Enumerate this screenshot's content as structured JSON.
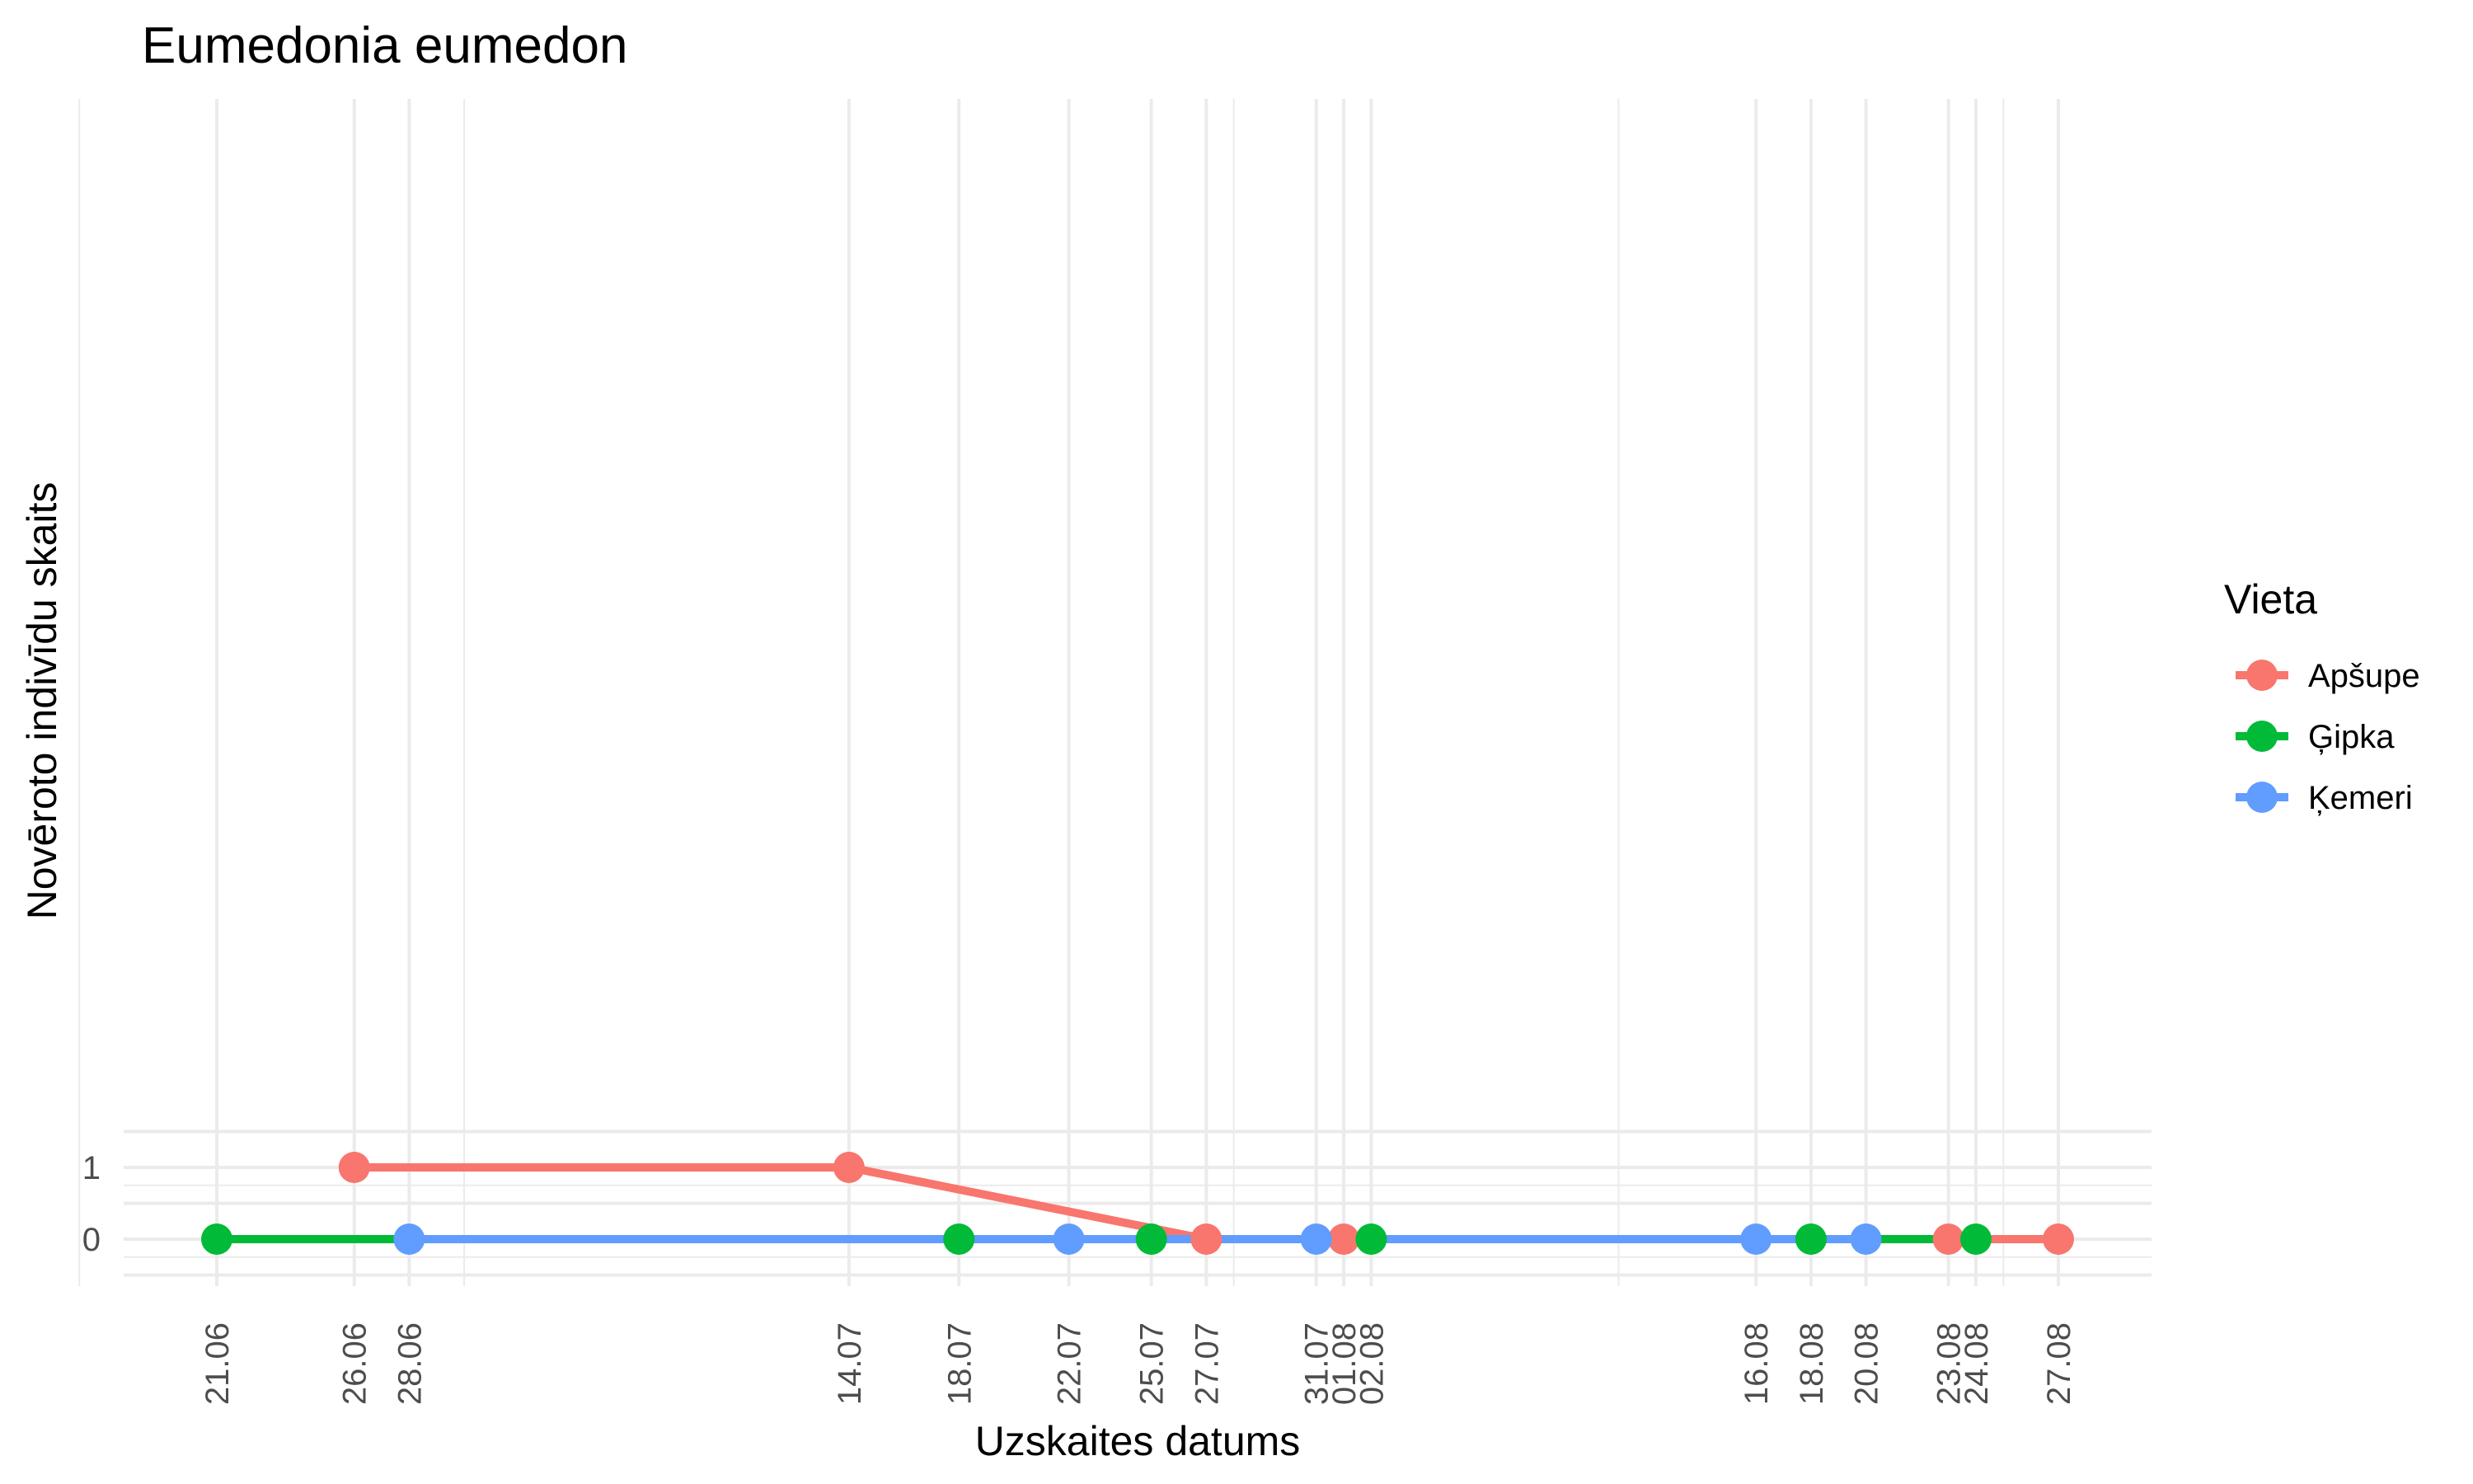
{
  "chart_data": {
    "type": "line",
    "title": "Eumedonia eumedon",
    "xlabel": "Uzskaites datums",
    "ylabel": "Novēroto indivīdu skaits",
    "year": 2023,
    "ylim": [
      -0.5,
      1.5
    ],
    "y_ticks": [
      0,
      1
    ],
    "x_tick_labels": [
      "21.06",
      "26.06",
      "28.06",
      "14.07",
      "18.07",
      "22.07",
      "25.07",
      "27.07",
      "31.07",
      "01.08",
      "02.08",
      "16.08",
      "18.08",
      "20.08",
      "23.08",
      "24.08",
      "27.08"
    ],
    "legend_title": "Vieta",
    "legend_position": "right",
    "grid": true,
    "series": [
      {
        "name": "Apšupe",
        "color": "#F8766D",
        "x": [
          "26.06",
          "14.07",
          "27.07",
          "01.08",
          "23.08",
          "27.08"
        ],
        "values": [
          1,
          1,
          0,
          0,
          0,
          0
        ]
      },
      {
        "name": "Ģipka",
        "color": "#00BA38",
        "x": [
          "21.06",
          "18.07",
          "25.07",
          "02.08",
          "18.08",
          "24.08"
        ],
        "values": [
          0,
          0,
          0,
          0,
          0,
          0
        ]
      },
      {
        "name": "Ķemeri",
        "color": "#619CFF",
        "x": [
          "28.06",
          "22.07",
          "31.07",
          "16.08",
          "20.08"
        ],
        "values": [
          0,
          0,
          0,
          0,
          0
        ]
      }
    ]
  }
}
